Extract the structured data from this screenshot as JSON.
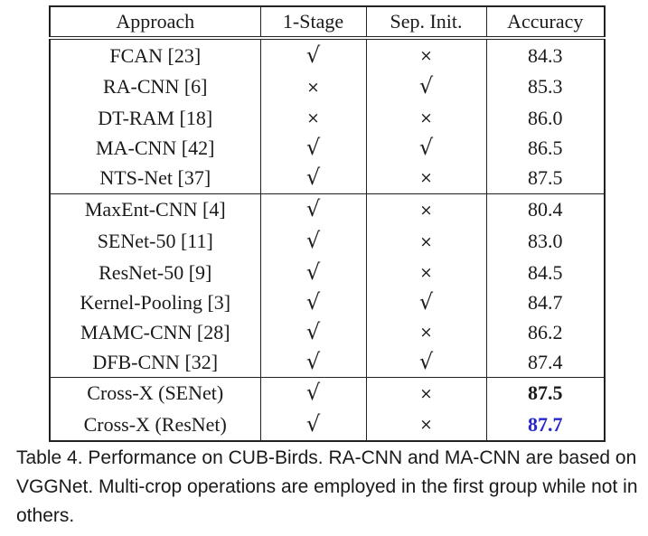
{
  "table": {
    "headers": [
      "Approach",
      "1-Stage",
      "Sep. Init.",
      "Accuracy"
    ],
    "groups": [
      [
        {
          "approach": "FCAN [23]",
          "one_stage": "check",
          "sep_init": "cross",
          "accuracy": "84.3",
          "style": "normal"
        },
        {
          "approach": "RA-CNN [6]",
          "one_stage": "cross",
          "sep_init": "check",
          "accuracy": "85.3",
          "style": "normal"
        },
        {
          "approach": "DT-RAM [18]",
          "one_stage": "cross",
          "sep_init": "cross",
          "accuracy": "86.0",
          "style": "normal"
        },
        {
          "approach": "MA-CNN [42]",
          "one_stage": "check",
          "sep_init": "check",
          "accuracy": "86.5",
          "style": "normal"
        },
        {
          "approach": "NTS-Net [37]",
          "one_stage": "check",
          "sep_init": "cross",
          "accuracy": "87.5",
          "style": "normal"
        }
      ],
      [
        {
          "approach": "MaxEnt-CNN [4]",
          "one_stage": "check",
          "sep_init": "cross",
          "accuracy": "80.4",
          "style": "normal"
        },
        {
          "approach": "SENet-50 [11]",
          "one_stage": "check",
          "sep_init": "cross",
          "accuracy": "83.0",
          "style": "normal"
        },
        {
          "approach": "ResNet-50 [9]",
          "one_stage": "check",
          "sep_init": "cross",
          "accuracy": "84.5",
          "style": "normal"
        },
        {
          "approach": "Kernel-Pooling [3]",
          "one_stage": "check",
          "sep_init": "check",
          "accuracy": "84.7",
          "style": "normal"
        },
        {
          "approach": "MAMC-CNN [28]",
          "one_stage": "check",
          "sep_init": "cross",
          "accuracy": "86.2",
          "style": "normal"
        },
        {
          "approach": "DFB-CNN [32]",
          "one_stage": "check",
          "sep_init": "check",
          "accuracy": "87.4",
          "style": "normal"
        }
      ],
      [
        {
          "approach": "Cross-X (SENet)",
          "one_stage": "check",
          "sep_init": "cross",
          "accuracy": "87.5",
          "style": "bold"
        },
        {
          "approach": "Cross-X (ResNet)",
          "one_stage": "check",
          "sep_init": "cross",
          "accuracy": "87.7",
          "style": "best"
        }
      ]
    ],
    "symbols": {
      "check": "√",
      "cross": "×"
    }
  },
  "caption": "Table 4. Performance on CUB-Birds. RA-CNN and MA-CNN are based on VGGNet. Multi-crop operations are employed in the first group while not in others.",
  "colors": {
    "best_accuracy": "#2727cc",
    "rule": "#222222"
  }
}
